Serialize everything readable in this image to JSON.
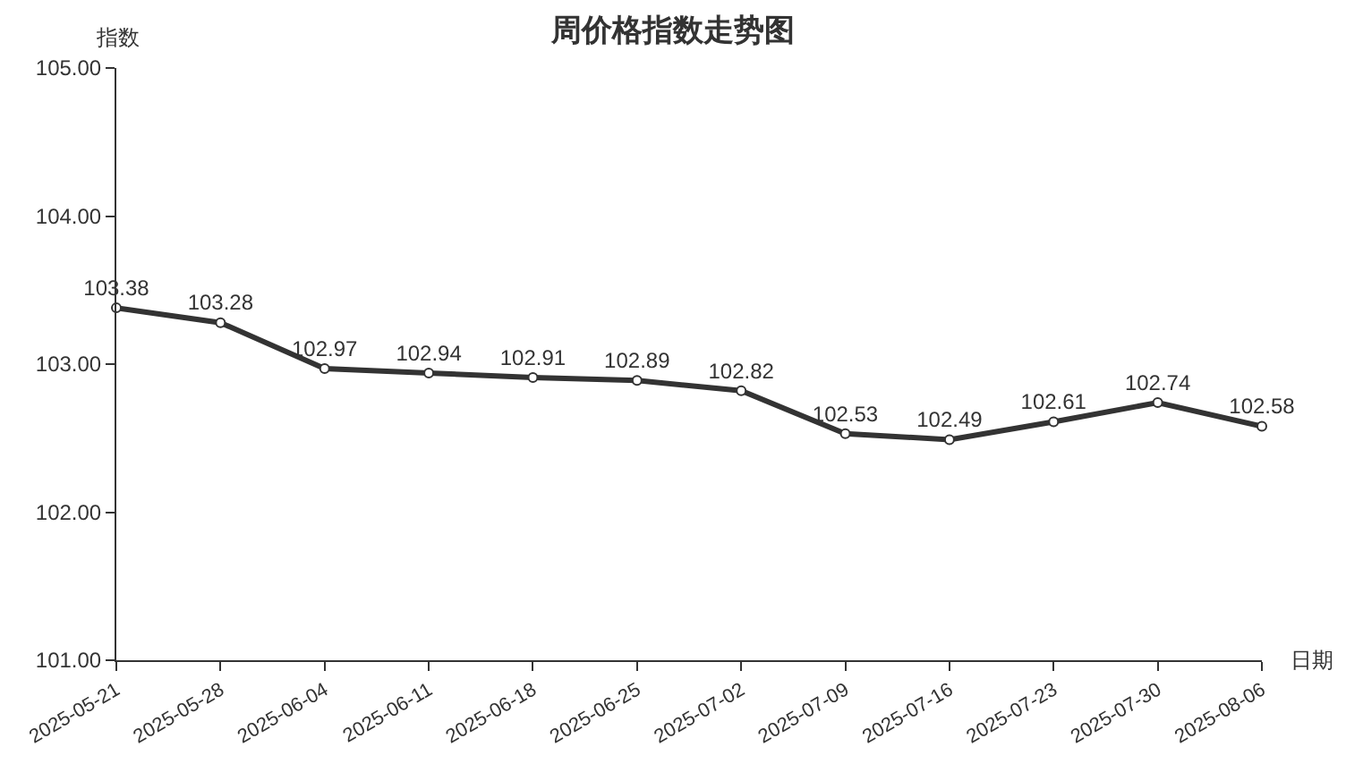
{
  "chart_data": {
    "type": "line",
    "title": "周价格指数走势图",
    "xlabel": "日期",
    "ylabel": "指数",
    "categories": [
      "2025-05-21",
      "2025-05-28",
      "2025-06-04",
      "2025-06-11",
      "2025-06-18",
      "2025-06-25",
      "2025-07-02",
      "2025-07-09",
      "2025-07-16",
      "2025-07-23",
      "2025-07-30",
      "2025-08-06"
    ],
    "series": [
      {
        "color": "#333333",
        "values": [
          103.38,
          103.28,
          102.97,
          102.94,
          102.91,
          102.89,
          102.82,
          102.53,
          102.49,
          102.61,
          102.74,
          102.58
        ]
      }
    ],
    "ylim": [
      101,
      105
    ],
    "yticks": [
      {
        "value": 101,
        "label": "101.00"
      },
      {
        "value": 102,
        "label": "102.00"
      },
      {
        "value": 103,
        "label": "103.00"
      },
      {
        "value": 104,
        "label": "104.00"
      },
      {
        "value": 105,
        "label": "105.00"
      }
    ],
    "grid": false,
    "marker": "circle",
    "line_style": "solid",
    "data_labels": true
  }
}
